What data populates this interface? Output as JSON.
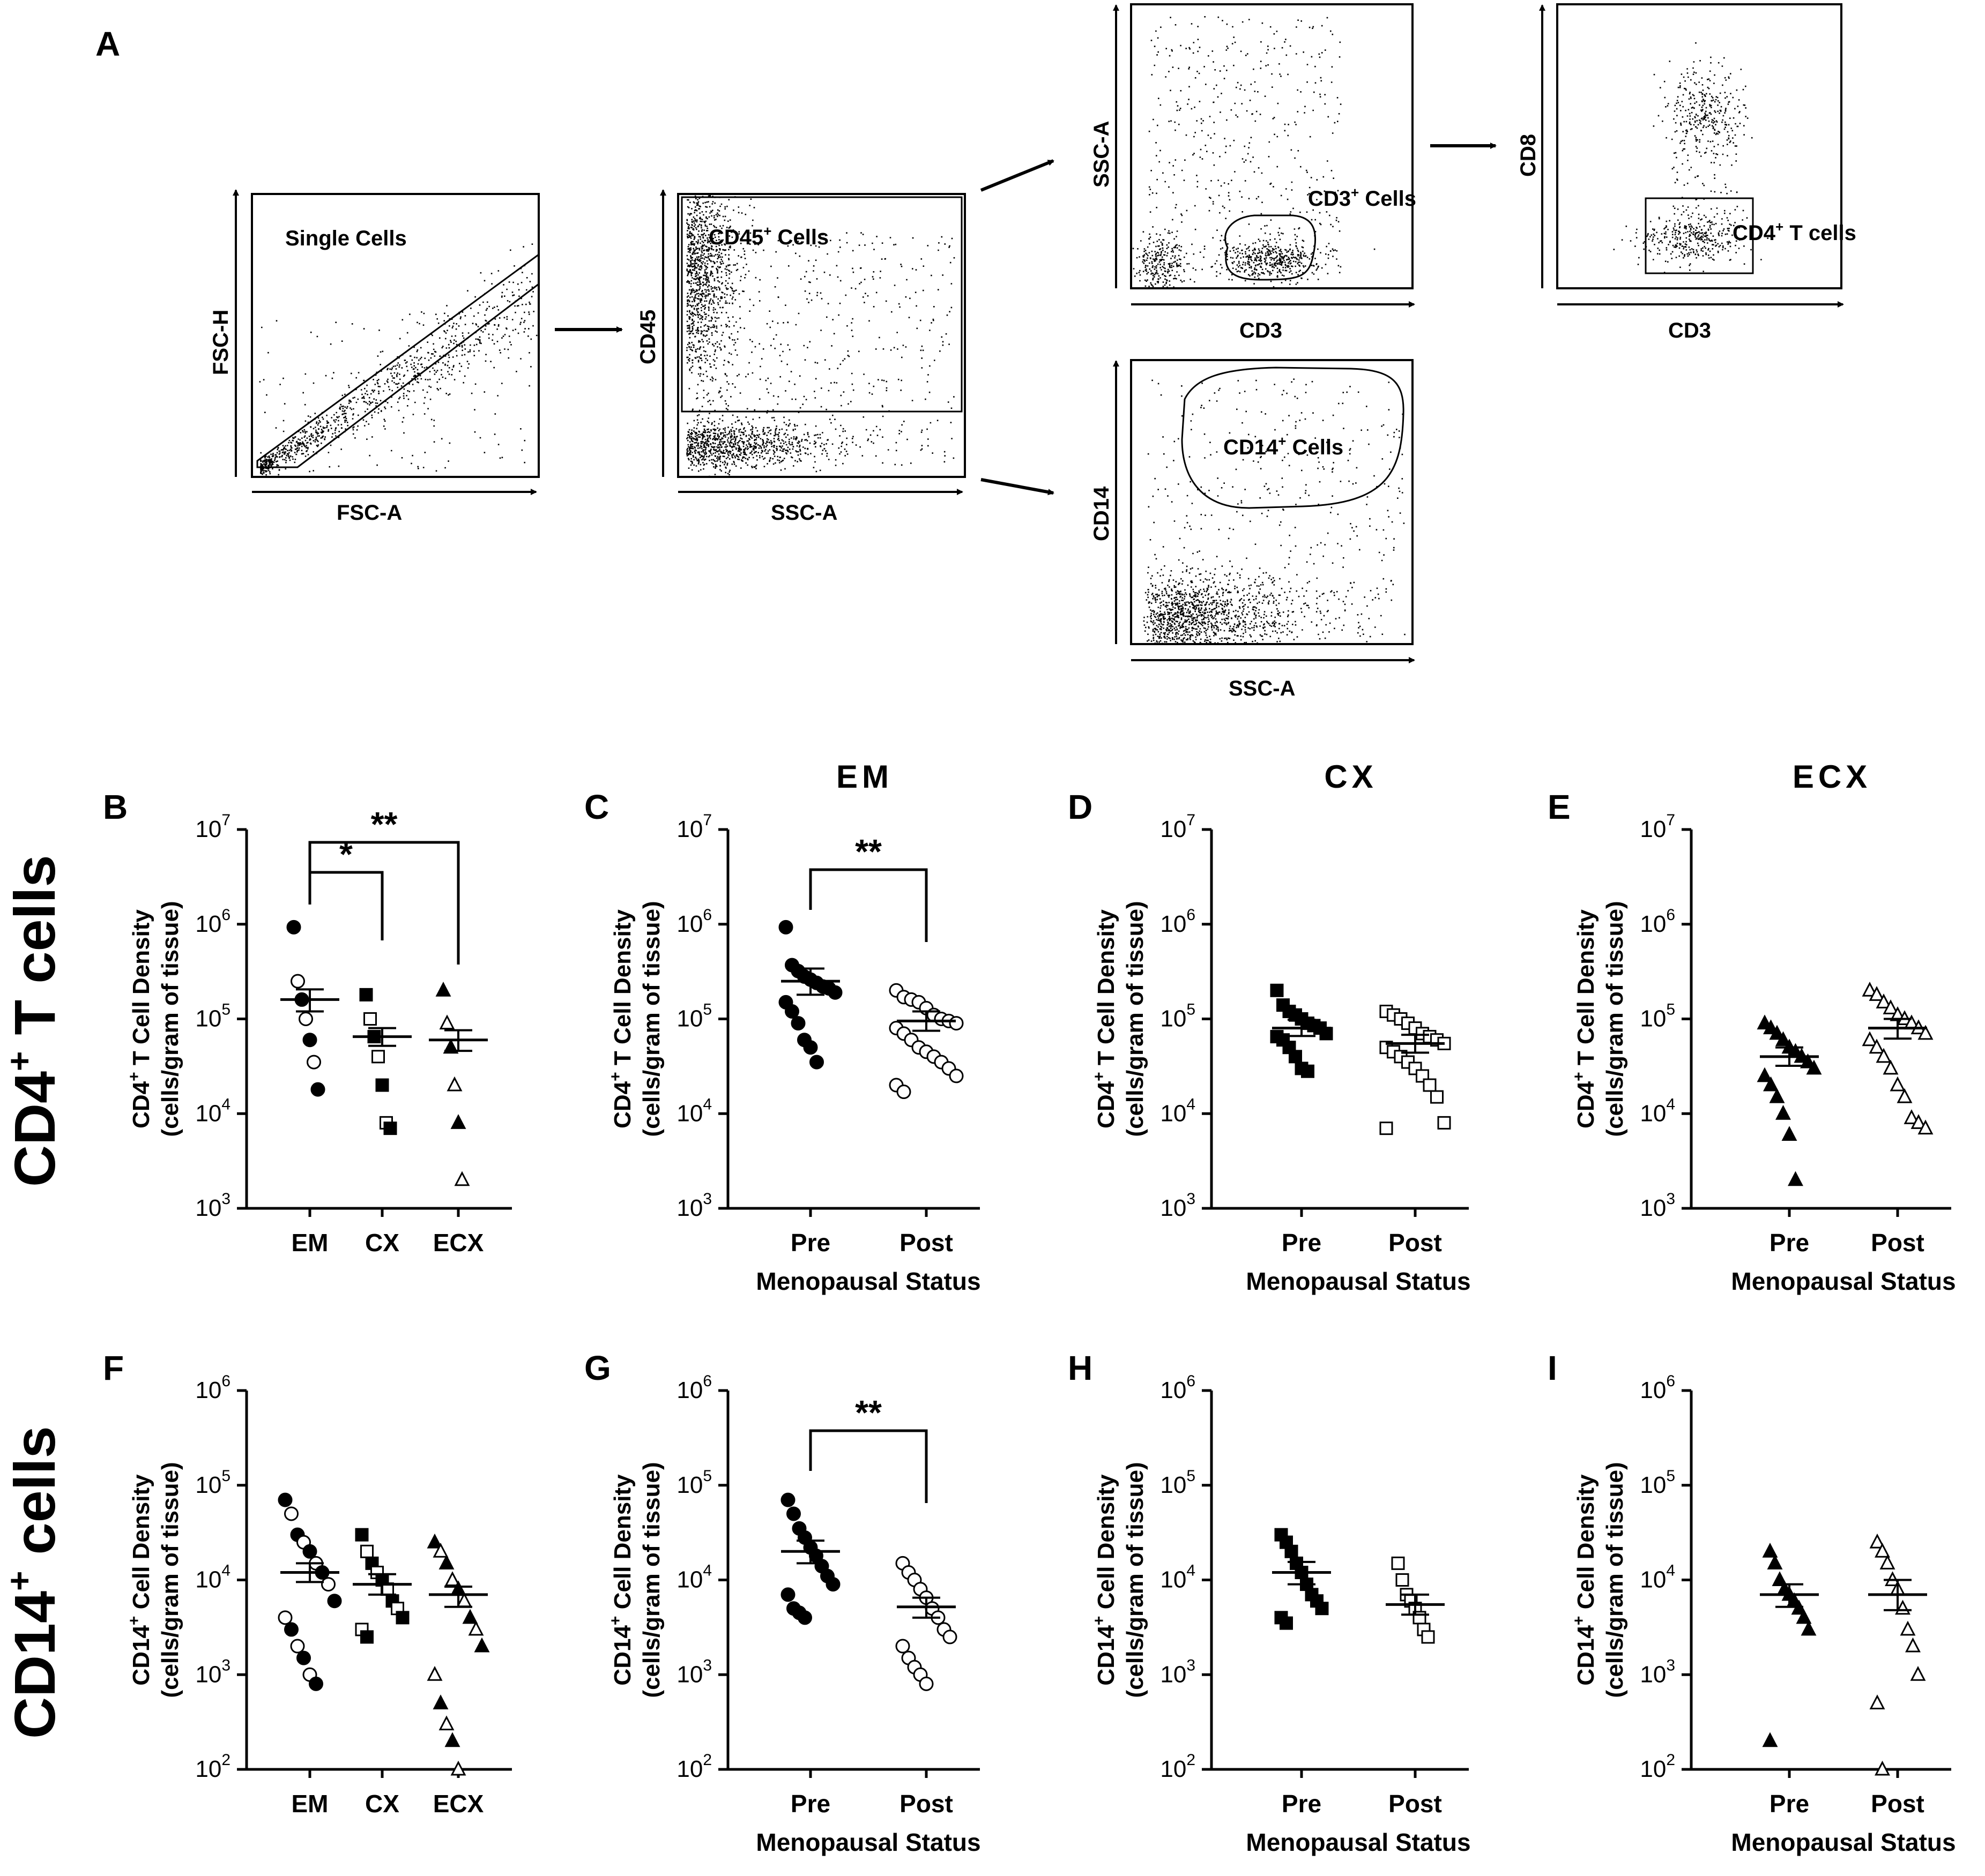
{
  "flow": {
    "panel_letter": "A",
    "p1": {
      "gate": "Single Cells",
      "x": "FSC-A",
      "y": "FSC-H"
    },
    "p2": {
      "gate": "CD45",
      "gate_sup": "+",
      "gate_tail": " Cells",
      "x": "SSC-A",
      "y": "CD45"
    },
    "p3": {
      "gate": "CD3",
      "gate_sup": "+",
      "gate_tail": " Cells",
      "x": "CD3",
      "y": "SSC-A"
    },
    "p4": {
      "gate": "CD4",
      "gate_sup": "+",
      "gate_tail": " T cells",
      "x": "CD3",
      "y": "CD8"
    },
    "p5": {
      "gate": "CD14",
      "gate_sup": "+",
      "gate_tail": " Cells",
      "x": "SSC-A",
      "y": "CD14"
    }
  },
  "row_labels": {
    "cd4": {
      "main": "CD4",
      "sup": "+",
      "tail": "T cells"
    },
    "cd14": {
      "main": "CD14",
      "sup": "+",
      "tail": " cells"
    }
  },
  "colors": {
    "ink": "#000000",
    "background": "#ffffff"
  },
  "chart_data": [
    {
      "id": "B",
      "type": "scatter",
      "letter": "B",
      "title": "",
      "ylabel": {
        "pre": "CD4",
        "sup": "+",
        "post": " T Cell Density",
        "line2": "(cells/gram of tissue)"
      },
      "ylim_exp": [
        3,
        7
      ],
      "scale": "log10",
      "categories": [
        "EM",
        "CX",
        "ECX"
      ],
      "xlabel": "",
      "groups": [
        {
          "name": "EM",
          "marker": "mixed-circle",
          "mean": 160000,
          "sem_low": 120000,
          "sem_high": 205000,
          "values": [
            930000,
            250000,
            160000,
            100000,
            60000,
            35000,
            18000
          ]
        },
        {
          "name": "CX",
          "marker": "mixed-square",
          "mean": 65000,
          "sem_low": 52000,
          "sem_high": 80000,
          "values": [
            180000,
            100000,
            65000,
            40000,
            20000,
            8000,
            7000
          ]
        },
        {
          "name": "ECX",
          "marker": "mixed-triangle",
          "mean": 60000,
          "sem_low": 46000,
          "sem_high": 76000,
          "values": [
            200000,
            90000,
            50000,
            20000,
            8000,
            2000
          ]
        }
      ],
      "significance": [
        {
          "from": "EM",
          "to": "CX",
          "label": "*"
        },
        {
          "from": "EM",
          "to": "ECX",
          "label": "**"
        }
      ]
    },
    {
      "id": "C",
      "type": "scatter",
      "letter": "C",
      "title": "EM",
      "ylabel": {
        "pre": "CD4",
        "sup": "+",
        "post": " T Cell Density",
        "line2": "(cells/gram of tissue)"
      },
      "ylim_exp": [
        3,
        7
      ],
      "scale": "log10",
      "categories": [
        "Pre",
        "Post"
      ],
      "xlabel": "Menopausal Status",
      "groups": [
        {
          "name": "Pre",
          "marker": "filled-circle",
          "mean": 250000,
          "sem_low": 180000,
          "sem_high": 340000,
          "values": [
            930000,
            370000,
            320000,
            280000,
            260000,
            240000,
            220000,
            210000,
            190000,
            150000,
            120000,
            90000,
            60000,
            50000,
            35000
          ]
        },
        {
          "name": "Post",
          "marker": "open-circle",
          "mean": 95000,
          "sem_low": 75000,
          "sem_high": 120000,
          "values": [
            200000,
            170000,
            160000,
            150000,
            130000,
            110000,
            100000,
            95000,
            90000,
            80000,
            70000,
            60000,
            50000,
            45000,
            40000,
            35000,
            30000,
            25000,
            20000,
            17000
          ]
        }
      ],
      "significance": [
        {
          "from": "Pre",
          "to": "Post",
          "label": "**"
        }
      ]
    },
    {
      "id": "D",
      "type": "scatter",
      "letter": "D",
      "title": "CX",
      "ylabel": {
        "pre": "CD4",
        "sup": "+",
        "post": " T Cell Density",
        "line2": "(cells/gram of tissue)"
      },
      "ylim_exp": [
        3,
        7
      ],
      "scale": "log10",
      "categories": [
        "Pre",
        "Post"
      ],
      "xlabel": "Menopausal Status",
      "groups": [
        {
          "name": "Pre",
          "marker": "filled-square",
          "mean": 80000,
          "sem_low": 66000,
          "sem_high": 98000,
          "values": [
            200000,
            140000,
            120000,
            110000,
            100000,
            90000,
            85000,
            80000,
            70000,
            65000,
            60000,
            50000,
            40000,
            30000,
            28000
          ]
        },
        {
          "name": "Post",
          "marker": "open-square",
          "mean": 55000,
          "sem_low": 44000,
          "sem_high": 68000,
          "values": [
            120000,
            110000,
            100000,
            90000,
            80000,
            70000,
            65000,
            60000,
            55000,
            50000,
            45000,
            40000,
            35000,
            30000,
            25000,
            20000,
            15000,
            8000,
            7000
          ]
        }
      ],
      "significance": []
    },
    {
      "id": "E",
      "type": "scatter",
      "letter": "E",
      "title": "ECX",
      "ylabel": {
        "pre": "CD4",
        "sup": "+",
        "post": " T Cell Density",
        "line2": "(cells/gram of tissue)"
      },
      "ylim_exp": [
        3,
        7
      ],
      "scale": "log10",
      "categories": [
        "Pre",
        "Post"
      ],
      "xlabel": "Menopausal Status",
      "groups": [
        {
          "name": "Pre",
          "marker": "filled-triangle",
          "mean": 40000,
          "sem_low": 32000,
          "sem_high": 50000,
          "values": [
            90000,
            80000,
            70000,
            60000,
            50000,
            45000,
            40000,
            35000,
            30000,
            25000,
            20000,
            15000,
            10000,
            6000,
            2000
          ]
        },
        {
          "name": "Post",
          "marker": "open-triangle",
          "mean": 80000,
          "sem_low": 62000,
          "sem_high": 100000,
          "values": [
            200000,
            180000,
            150000,
            130000,
            110000,
            100000,
            90000,
            80000,
            70000,
            60000,
            50000,
            40000,
            30000,
            20000,
            15000,
            9000,
            8000,
            7000
          ]
        }
      ],
      "significance": []
    },
    {
      "id": "F",
      "type": "scatter",
      "letter": "F",
      "title": "",
      "ylabel": {
        "pre": "CD14",
        "sup": "+",
        "post": " Cell Density",
        "line2": "(cells/gram of tissue)"
      },
      "ylim_exp": [
        2,
        6
      ],
      "scale": "log10",
      "categories": [
        "EM",
        "CX",
        "ECX"
      ],
      "xlabel": "",
      "groups": [
        {
          "name": "EM",
          "marker": "mixed-circle",
          "mean": 12000,
          "sem_low": 9500,
          "sem_high": 15000,
          "values": [
            70000,
            50000,
            30000,
            25000,
            20000,
            15000,
            12000,
            9000,
            6000,
            4000,
            3000,
            2000,
            1500,
            1000,
            800
          ]
        },
        {
          "name": "CX",
          "marker": "mixed-square",
          "mean": 9000,
          "sem_low": 7000,
          "sem_high": 11500,
          "values": [
            30000,
            20000,
            15000,
            12000,
            10000,
            8000,
            6000,
            5000,
            4000,
            3000,
            2500
          ]
        },
        {
          "name": "ECX",
          "marker": "mixed-triangle",
          "mean": 7000,
          "sem_low": 5200,
          "sem_high": 8500,
          "values": [
            25000,
            20000,
            15000,
            10000,
            8000,
            6000,
            4000,
            3000,
            2000,
            1000,
            500,
            300,
            200,
            100
          ]
        }
      ],
      "significance": []
    },
    {
      "id": "G",
      "type": "scatter",
      "letter": "G",
      "title": "",
      "ylabel": {
        "pre": "CD14",
        "sup": "+",
        "post": " Cell Density",
        "line2": "(cells/gram of tissue)"
      },
      "ylim_exp": [
        2,
        6
      ],
      "scale": "log10",
      "categories": [
        "Pre",
        "Post"
      ],
      "xlabel": "Menopausal Status",
      "groups": [
        {
          "name": "Pre",
          "marker": "filled-circle",
          "mean": 20000,
          "sem_low": 15000,
          "sem_high": 26000,
          "values": [
            70000,
            50000,
            35000,
            28000,
            22000,
            18000,
            14000,
            11000,
            9000,
            7000,
            5000,
            4500,
            4000
          ]
        },
        {
          "name": "Post",
          "marker": "open-circle",
          "mean": 5200,
          "sem_low": 4000,
          "sem_high": 6500,
          "values": [
            15000,
            12000,
            10000,
            8000,
            6500,
            5000,
            4000,
            3000,
            2500,
            2000,
            1500,
            1200,
            1000,
            800
          ]
        }
      ],
      "significance": [
        {
          "from": "Pre",
          "to": "Post",
          "label": "**"
        }
      ]
    },
    {
      "id": "H",
      "type": "scatter",
      "letter": "H",
      "title": "",
      "ylabel": {
        "pre": "CD14",
        "sup": "+",
        "post": " Cell Density",
        "line2": "(cells/gram of tissue)"
      },
      "ylim_exp": [
        2,
        6
      ],
      "scale": "log10",
      "categories": [
        "Pre",
        "Post"
      ],
      "xlabel": "Menopausal Status",
      "groups": [
        {
          "name": "Pre",
          "marker": "filled-square",
          "mean": 12000,
          "sem_low": 9000,
          "sem_high": 15500,
          "values": [
            30000,
            25000,
            20000,
            15000,
            12000,
            9000,
            7000,
            6000,
            5000,
            4000,
            3500
          ]
        },
        {
          "name": "Post",
          "marker": "open-square",
          "mean": 5500,
          "sem_low": 4300,
          "sem_high": 7000,
          "values": [
            15000,
            10000,
            7000,
            6000,
            5000,
            4000,
            3000,
            2500
          ]
        }
      ],
      "significance": []
    },
    {
      "id": "I",
      "type": "scatter",
      "letter": "I",
      "title": "",
      "ylabel": {
        "pre": "CD14",
        "sup": "+",
        "post": " Cell Density",
        "line2": "(cells/gram of tissue)"
      },
      "ylim_exp": [
        2,
        6
      ],
      "scale": "log10",
      "categories": [
        "Pre",
        "Post"
      ],
      "xlabel": "Menopausal Status",
      "groups": [
        {
          "name": "Pre",
          "marker": "filled-triangle",
          "mean": 7000,
          "sem_low": 5200,
          "sem_high": 9000,
          "values": [
            20000,
            15000,
            10000,
            8000,
            7000,
            6000,
            5000,
            4000,
            3000,
            200
          ]
        },
        {
          "name": "Post",
          "marker": "open-triangle",
          "mean": 7000,
          "sem_low": 4800,
          "sem_high": 10000,
          "values": [
            25000,
            20000,
            15000,
            10000,
            8000,
            5000,
            3000,
            2000,
            1000,
            500,
            100
          ]
        }
      ],
      "significance": []
    }
  ]
}
